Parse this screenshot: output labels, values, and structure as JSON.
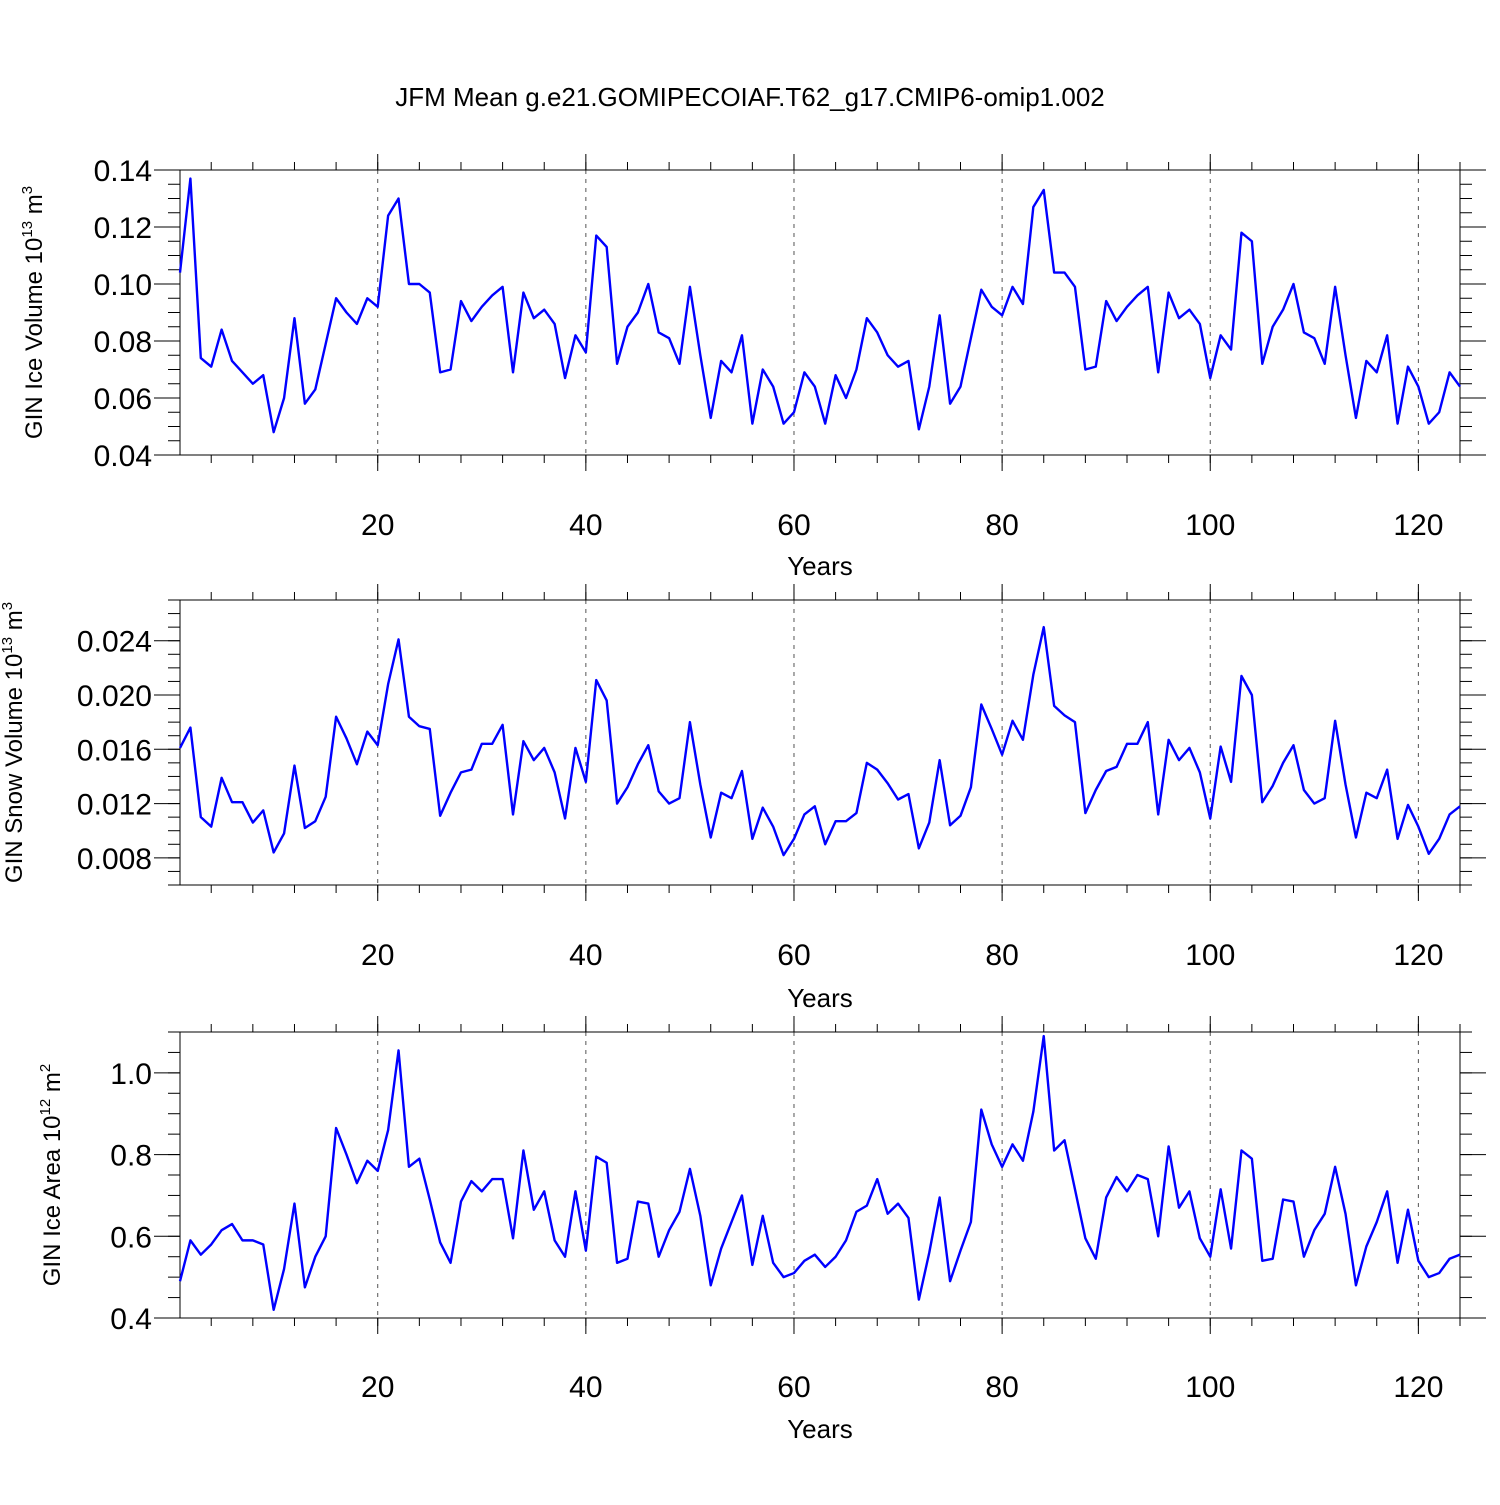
{
  "title": "JFM Mean g.e21.GOMIPECOIAF.T62_g17.CMIP6-omip1.002",
  "colors": {
    "line": "#0000ff",
    "axis": "#000000",
    "grid": "#555555",
    "background": "#ffffff"
  },
  "chart_data": [
    {
      "type": "line",
      "name": "ice-volume",
      "ylabel": {
        "main": "GIN Ice Volume 10",
        "exponent": "13",
        "unit": " m",
        "unit_exponent": "3"
      },
      "xlabel": "Years",
      "xlim": [
        1,
        124
      ],
      "ylim": [
        0.04,
        0.14
      ],
      "xticks": [
        20,
        40,
        60,
        80,
        100,
        120
      ],
      "yticks": [
        0.04,
        0.06,
        0.08,
        0.1,
        0.12,
        0.14
      ],
      "ytick_labels": [
        "0.04",
        "0.06",
        "0.08",
        "0.10",
        "0.12",
        "0.14"
      ],
      "y_minor_step": 0.005,
      "x_minor_step": 4,
      "x": [
        1,
        2,
        3,
        4,
        5,
        6,
        7,
        8,
        9,
        10,
        11,
        12,
        13,
        14,
        15,
        16,
        17,
        18,
        19,
        20,
        21,
        22,
        23,
        24,
        25,
        26,
        27,
        28,
        29,
        30,
        31,
        32,
        33,
        34,
        35,
        36,
        37,
        38,
        39,
        40,
        41,
        42,
        43,
        44,
        45,
        46,
        47,
        48,
        49,
        50,
        51,
        52,
        53,
        54,
        55,
        56,
        57,
        58,
        59,
        60,
        61,
        62,
        63,
        64,
        65,
        66,
        67,
        68,
        69,
        70,
        71,
        72,
        73,
        74,
        75,
        76,
        77,
        78,
        79,
        80,
        81,
        82,
        83,
        84,
        85,
        86,
        87,
        88,
        89,
        90,
        91,
        92,
        93,
        94,
        95,
        96,
        97,
        98,
        99,
        100,
        101,
        102,
        103,
        104,
        105,
        106,
        107,
        108,
        109,
        110,
        111,
        112,
        113,
        114,
        115,
        116,
        117,
        118,
        119,
        120,
        121,
        122,
        123,
        124
      ],
      "series": [
        {
          "name": "GIN Ice Volume",
          "values": [
            0.104,
            0.137,
            0.074,
            0.071,
            0.084,
            0.073,
            0.069,
            0.065,
            0.068,
            0.048,
            0.06,
            0.088,
            0.058,
            0.063,
            0.079,
            0.095,
            0.09,
            0.086,
            0.095,
            0.092,
            0.124,
            0.13,
            0.1,
            0.1,
            0.097,
            0.069,
            0.07,
            0.094,
            0.087,
            0.092,
            0.096,
            0.099,
            0.069,
            0.097,
            0.088,
            0.091,
            0.086,
            0.067,
            0.082,
            0.076,
            0.117,
            0.113,
            0.072,
            0.085,
            0.09,
            0.1,
            0.083,
            0.081,
            0.072,
            0.099,
            0.075,
            0.053,
            0.073,
            0.069,
            0.082,
            0.051,
            0.07,
            0.064,
            0.051,
            0.055,
            0.069,
            0.064,
            0.051,
            0.068,
            0.06,
            0.07,
            0.088,
            0.083,
            0.075,
            0.071,
            0.073,
            0.049,
            0.064,
            0.089,
            0.058,
            0.064,
            0.081,
            0.098,
            0.092,
            0.089,
            0.099,
            0.093,
            0.127,
            0.133,
            0.104,
            0.104,
            0.099,
            0.07,
            0.071,
            0.094,
            0.087,
            0.092,
            0.096,
            0.099,
            0.069,
            0.097,
            0.088,
            0.091,
            0.086,
            0.067,
            0.082,
            0.077,
            0.118,
            0.115,
            0.072,
            0.085,
            0.091,
            0.1,
            0.083,
            0.081,
            0.072,
            0.099,
            0.075,
            0.053,
            0.073,
            0.069,
            0.082,
            0.051,
            0.071,
            0.064,
            0.051,
            0.055,
            0.069,
            0.064
          ]
        }
      ]
    },
    {
      "type": "line",
      "name": "snow-volume",
      "ylabel": {
        "main": "GIN Snow Volume 10",
        "exponent": "13",
        "unit": " m",
        "unit_exponent": "3"
      },
      "xlabel": "Years",
      "xlim": [
        1,
        124
      ],
      "ylim": [
        0.006,
        0.027
      ],
      "xticks": [
        20,
        40,
        60,
        80,
        100,
        120
      ],
      "yticks": [
        0.008,
        0.012,
        0.016,
        0.02,
        0.024
      ],
      "ytick_labels": [
        "0.008",
        "0.012",
        "0.016",
        "0.020",
        "0.024"
      ],
      "y_minor_step": 0.001,
      "x_minor_step": 4,
      "x": [
        1,
        2,
        3,
        4,
        5,
        6,
        7,
        8,
        9,
        10,
        11,
        12,
        13,
        14,
        15,
        16,
        17,
        18,
        19,
        20,
        21,
        22,
        23,
        24,
        25,
        26,
        27,
        28,
        29,
        30,
        31,
        32,
        33,
        34,
        35,
        36,
        37,
        38,
        39,
        40,
        41,
        42,
        43,
        44,
        45,
        46,
        47,
        48,
        49,
        50,
        51,
        52,
        53,
        54,
        55,
        56,
        57,
        58,
        59,
        60,
        61,
        62,
        63,
        64,
        65,
        66,
        67,
        68,
        69,
        70,
        71,
        72,
        73,
        74,
        75,
        76,
        77,
        78,
        79,
        80,
        81,
        82,
        83,
        84,
        85,
        86,
        87,
        88,
        89,
        90,
        91,
        92,
        93,
        94,
        95,
        96,
        97,
        98,
        99,
        100,
        101,
        102,
        103,
        104,
        105,
        106,
        107,
        108,
        109,
        110,
        111,
        112,
        113,
        114,
        115,
        116,
        117,
        118,
        119,
        120,
        121,
        122,
        123,
        124
      ],
      "series": [
        {
          "name": "GIN Snow Volume",
          "values": [
            0.0161,
            0.0176,
            0.011,
            0.0103,
            0.0139,
            0.0121,
            0.0121,
            0.0106,
            0.0115,
            0.0084,
            0.0098,
            0.0148,
            0.0102,
            0.0107,
            0.0125,
            0.0184,
            0.0168,
            0.0149,
            0.0173,
            0.0163,
            0.0208,
            0.0241,
            0.0184,
            0.0177,
            0.0175,
            0.0111,
            0.0128,
            0.0143,
            0.0145,
            0.0164,
            0.0164,
            0.0178,
            0.0112,
            0.0166,
            0.0152,
            0.0161,
            0.0143,
            0.0109,
            0.0161,
            0.0136,
            0.0211,
            0.0196,
            0.012,
            0.0132,
            0.0149,
            0.0163,
            0.0129,
            0.012,
            0.0124,
            0.018,
            0.0134,
            0.0095,
            0.0128,
            0.0124,
            0.0144,
            0.0094,
            0.0117,
            0.0103,
            0.0082,
            0.0094,
            0.0112,
            0.0118,
            0.009,
            0.0107,
            0.0107,
            0.0113,
            0.015,
            0.0145,
            0.0135,
            0.0123,
            0.0127,
            0.0087,
            0.0106,
            0.0152,
            0.0104,
            0.0111,
            0.0132,
            0.0193,
            0.0175,
            0.0156,
            0.0181,
            0.0167,
            0.0215,
            0.025,
            0.0192,
            0.0185,
            0.018,
            0.0113,
            0.013,
            0.0144,
            0.0147,
            0.0164,
            0.0164,
            0.018,
            0.0112,
            0.0167,
            0.0152,
            0.0161,
            0.0143,
            0.0109,
            0.0162,
            0.0136,
            0.0214,
            0.02,
            0.0121,
            0.0133,
            0.015,
            0.0163,
            0.013,
            0.012,
            0.0124,
            0.0181,
            0.0134,
            0.0095,
            0.0128,
            0.0124,
            0.0145,
            0.0094,
            0.0119,
            0.0103,
            0.0083,
            0.0094,
            0.0112,
            0.0118
          ]
        }
      ]
    },
    {
      "type": "line",
      "name": "ice-area",
      "ylabel": {
        "main": "GIN Ice Area 10",
        "exponent": "12",
        "unit": " m",
        "unit_exponent": "2"
      },
      "xlabel": "Years",
      "xlim": [
        1,
        124
      ],
      "ylim": [
        0.4,
        1.1
      ],
      "xticks": [
        20,
        40,
        60,
        80,
        100,
        120
      ],
      "yticks": [
        0.4,
        0.6,
        0.8,
        1.0
      ],
      "ytick_labels": [
        "0.4",
        "0.6",
        "0.8",
        "1.0"
      ],
      "y_minor_step": 0.05,
      "x_minor_step": 4,
      "x": [
        1,
        2,
        3,
        4,
        5,
        6,
        7,
        8,
        9,
        10,
        11,
        12,
        13,
        14,
        15,
        16,
        17,
        18,
        19,
        20,
        21,
        22,
        23,
        24,
        25,
        26,
        27,
        28,
        29,
        30,
        31,
        32,
        33,
        34,
        35,
        36,
        37,
        38,
        39,
        40,
        41,
        42,
        43,
        44,
        45,
        46,
        47,
        48,
        49,
        50,
        51,
        52,
        53,
        54,
        55,
        56,
        57,
        58,
        59,
        60,
        61,
        62,
        63,
        64,
        65,
        66,
        67,
        68,
        69,
        70,
        71,
        72,
        73,
        74,
        75,
        76,
        77,
        78,
        79,
        80,
        81,
        82,
        83,
        84,
        85,
        86,
        87,
        88,
        89,
        90,
        91,
        92,
        93,
        94,
        95,
        96,
        97,
        98,
        99,
        100,
        101,
        102,
        103,
        104,
        105,
        106,
        107,
        108,
        109,
        110,
        111,
        112,
        113,
        114,
        115,
        116,
        117,
        118,
        119,
        120,
        121,
        122,
        123,
        124
      ],
      "series": [
        {
          "name": "GIN Ice Area",
          "values": [
            0.49,
            0.59,
            0.555,
            0.58,
            0.615,
            0.63,
            0.59,
            0.59,
            0.58,
            0.42,
            0.52,
            0.68,
            0.475,
            0.55,
            0.6,
            0.865,
            0.8,
            0.73,
            0.785,
            0.76,
            0.86,
            1.055,
            0.77,
            0.79,
            0.69,
            0.585,
            0.535,
            0.685,
            0.735,
            0.71,
            0.74,
            0.74,
            0.595,
            0.81,
            0.665,
            0.71,
            0.59,
            0.55,
            0.71,
            0.565,
            0.795,
            0.78,
            0.535,
            0.545,
            0.685,
            0.68,
            0.55,
            0.615,
            0.66,
            0.765,
            0.65,
            0.48,
            0.57,
            0.635,
            0.7,
            0.53,
            0.65,
            0.535,
            0.5,
            0.51,
            0.54,
            0.555,
            0.525,
            0.55,
            0.59,
            0.66,
            0.675,
            0.74,
            0.655,
            0.68,
            0.645,
            0.445,
            0.56,
            0.695,
            0.49,
            0.565,
            0.635,
            0.91,
            0.825,
            0.77,
            0.825,
            0.785,
            0.905,
            1.09,
            0.81,
            0.835,
            0.715,
            0.595,
            0.545,
            0.695,
            0.745,
            0.71,
            0.75,
            0.74,
            0.6,
            0.82,
            0.67,
            0.71,
            0.595,
            0.55,
            0.715,
            0.57,
            0.81,
            0.79,
            0.54,
            0.545,
            0.69,
            0.685,
            0.55,
            0.615,
            0.655,
            0.77,
            0.655,
            0.48,
            0.575,
            0.635,
            0.71,
            0.535,
            0.665,
            0.54,
            0.5,
            0.51,
            0.545,
            0.555
          ]
        }
      ]
    }
  ]
}
